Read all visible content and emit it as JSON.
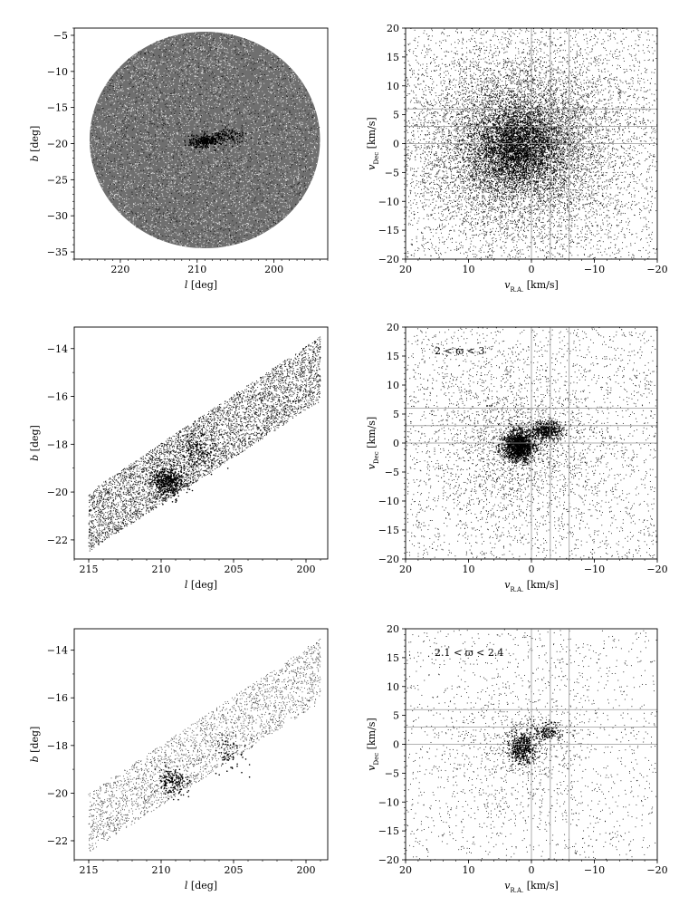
{
  "chart_data": [
    {
      "type": "scatter",
      "panel": "sky-all",
      "xlabel": "l [deg]",
      "ylabel": "b [deg]",
      "xlim": [
        226,
        193
      ],
      "ylim": [
        -36,
        -4
      ],
      "xticks": [
        220,
        210,
        200
      ],
      "yticks": [
        -5,
        -10,
        -15,
        -20,
        -25,
        -30,
        -35
      ],
      "region": {
        "shape": "circle",
        "center": [
          209,
          -19.5
        ],
        "radius_deg": 15
      },
      "clusters": [
        {
          "label": "dense clump",
          "center": [
            209,
            -19.7
          ]
        },
        {
          "label": "secondary clump",
          "center": [
            206.5,
            -19.0
          ]
        }
      ],
      "density": "high",
      "grid": false
    },
    {
      "type": "scatter",
      "panel": "velocity-all",
      "xlabel": "v_R.A. [km/s]",
      "ylabel": "v_Dec [km/s]",
      "xlim": [
        20,
        -20
      ],
      "ylim": [
        -20,
        20
      ],
      "xticks": [
        20,
        10,
        0,
        -10,
        -20
      ],
      "yticks": [
        20,
        15,
        10,
        5,
        0,
        -5,
        -10,
        -15,
        -20
      ],
      "reference_lines": {
        "vertical": [
          0,
          -3,
          -6
        ],
        "horizontal": [
          0,
          3,
          6
        ]
      },
      "distribution": {
        "center": [
          2,
          -0.5
        ],
        "spread_km_s": 8
      },
      "density": "high",
      "grid": false
    },
    {
      "type": "scatter",
      "panel": "sky-parallax-2-3",
      "xlabel": "l [deg]",
      "ylabel": "b [deg]",
      "xlim": [
        216,
        198.5
      ],
      "ylim": [
        -22.8,
        -13.1
      ],
      "xticks": [
        215,
        210,
        205,
        200
      ],
      "yticks": [
        -14,
        -16,
        -18,
        -20,
        -22
      ],
      "region": {
        "shape": "band",
        "l_range": [
          215,
          199
        ],
        "b_at_215": [
          -22.5,
          -20.0
        ],
        "b_at_199": [
          -16.2,
          -13.5
        ]
      },
      "clusters": [
        {
          "label": "dense clump",
          "center": [
            209.5,
            -19.6
          ]
        },
        {
          "label": "secondary clump",
          "center": [
            207.5,
            -18.3
          ]
        }
      ],
      "grid": false
    },
    {
      "type": "scatter",
      "panel": "velocity-parallax-2-3",
      "annotation": "2 < ϖ < 3",
      "xlabel": "v_R.A. [km/s]",
      "ylabel": "v_Dec [km/s]",
      "xlim": [
        20,
        -20
      ],
      "ylim": [
        -20,
        20
      ],
      "xticks": [
        20,
        10,
        0,
        -10,
        -20
      ],
      "yticks": [
        20,
        15,
        10,
        5,
        0,
        -5,
        -10,
        -15,
        -20
      ],
      "reference_lines": {
        "vertical": [
          0,
          -3,
          -6
        ],
        "horizontal": [
          0,
          3,
          6
        ]
      },
      "clusters": [
        {
          "label": "core",
          "center": [
            2,
            -0.5
          ]
        },
        {
          "label": "tail",
          "center": [
            -2.5,
            2
          ]
        }
      ],
      "grid": false
    },
    {
      "type": "scatter",
      "panel": "sky-parallax-2.1-2.4",
      "xlabel": "l [deg]",
      "ylabel": "b [deg]",
      "xlim": [
        216,
        198.5
      ],
      "ylim": [
        -22.8,
        -13.1
      ],
      "xticks": [
        215,
        210,
        205,
        200
      ],
      "yticks": [
        -14,
        -16,
        -18,
        -20,
        -22
      ],
      "region": {
        "shape": "band",
        "l_range": [
          215,
          199
        ],
        "b_at_215": [
          -22.5,
          -20.0
        ],
        "b_at_199": [
          -16.2,
          -13.5
        ]
      },
      "clusters": [
        {
          "label": "dense clump",
          "center": [
            209.2,
            -19.5
          ]
        },
        {
          "label": "secondary clump",
          "center": [
            205.3,
            -18.3
          ]
        }
      ],
      "grid": false
    },
    {
      "type": "scatter",
      "panel": "velocity-parallax-2.1-2.4",
      "annotation": "2.1 < ϖ < 2.4",
      "xlabel": "v_R.A. [km/s]",
      "ylabel": "v_Dec [km/s]",
      "xlim": [
        20,
        -20
      ],
      "ylim": [
        -20,
        20
      ],
      "xticks": [
        20,
        10,
        0,
        -10,
        -20
      ],
      "yticks": [
        20,
        15,
        10,
        5,
        0,
        -5,
        -10,
        -15,
        -20
      ],
      "reference_lines": {
        "vertical": [
          0,
          -3,
          -6
        ],
        "horizontal": [
          0,
          3,
          6
        ]
      },
      "clusters": [
        {
          "label": "core",
          "center": [
            1.5,
            -0.5
          ]
        },
        {
          "label": "tail",
          "center": [
            -2.5,
            2
          ]
        }
      ],
      "grid": false
    }
  ]
}
